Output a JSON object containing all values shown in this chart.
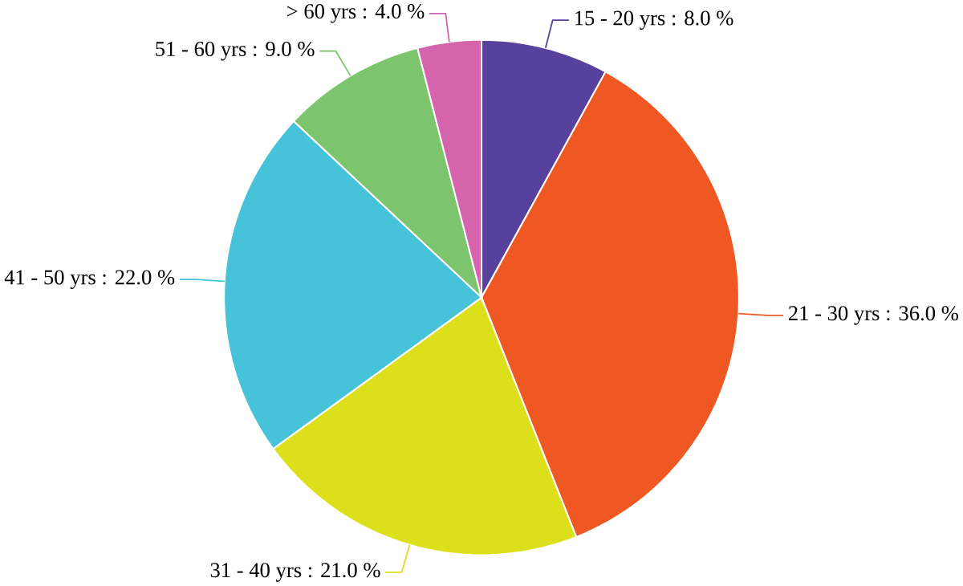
{
  "chart_data": {
    "type": "pie",
    "categories": [
      "15 - 20 yrs : 8.0 %",
      "21 - 30 yrs : 36.0 %",
      "31 - 40 yrs : 21.0 %",
      "41 - 50 yrs : 22.0 %",
      "51 - 60 yrs : 9.0 %",
      "> 60 yrs : 4.0 %"
    ],
    "values": [
      8.0,
      36.0,
      21.0,
      22.0,
      9.0,
      4.0
    ],
    "colors": [
      "#57419c",
      "#ef5822",
      "#dbe01b",
      "#46c3d9",
      "#7cc46d",
      "#d664ac"
    ]
  }
}
